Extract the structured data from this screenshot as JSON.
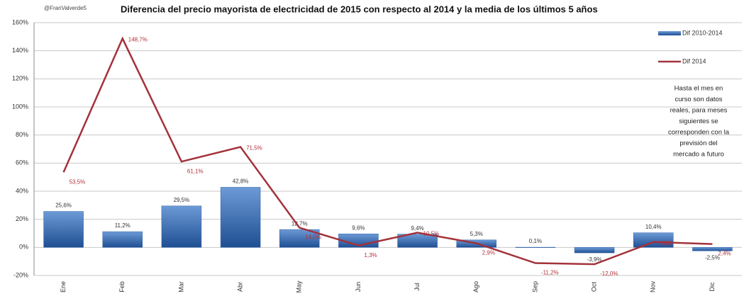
{
  "chart_data": {
    "type": "bar_line",
    "title": "Diferencia del precio mayorista de electricidad de 2015 con respecto al 2014 y la media de los últimos 5 años",
    "source": "@FranValverde5",
    "categories": [
      "Ene",
      "Feb",
      "Mar",
      "Abr",
      "May",
      "Jun",
      "Jul",
      "Ago",
      "Sep",
      "Oct",
      "Nov",
      "Dic"
    ],
    "series": [
      {
        "name": "Dif 2010-2014",
        "type": "bar",
        "color": "#2f62a8",
        "values": [
          25.6,
          11.2,
          29.5,
          42.8,
          12.7,
          9.6,
          9.4,
          5.3,
          0.1,
          -3.9,
          10.4,
          -2.5
        ],
        "value_labels": [
          "25,6%",
          "11,2%",
          "29,5%",
          "42,8%",
          "12,7%",
          "9,6%",
          "9,4%",
          "5,3%",
          "0,1%",
          "-3,9%",
          "10,4%",
          "-2,5%"
        ]
      },
      {
        "name": "Dif 2014",
        "type": "line",
        "color": "#a3323b",
        "values": [
          53.5,
          148.7,
          61.1,
          71.5,
          14.0,
          1.3,
          10.5,
          2.9,
          -11.2,
          -12.0,
          3.8,
          2.4
        ],
        "value_labels": [
          "53,5%",
          "148,7%",
          "61,1%",
          "71,5%",
          "14,0%",
          "1,3%",
          "10,5%",
          "2,9%",
          "-11,2%",
          "-12,0%",
          "3,8%",
          "2,4%"
        ]
      }
    ],
    "ylim": [
      -20,
      160
    ],
    "yticks": [
      {
        "value": -20,
        "label": "-20%"
      },
      {
        "value": 0,
        "label": "0%"
      },
      {
        "value": 20,
        "label": "20%"
      },
      {
        "value": 40,
        "label": "40%"
      },
      {
        "value": 60,
        "label": "60%"
      },
      {
        "value": 80,
        "label": "80%"
      },
      {
        "value": 100,
        "label": "100%"
      },
      {
        "value": 120,
        "label": "120%"
      },
      {
        "value": 140,
        "label": "140%"
      },
      {
        "value": 160,
        "label": "160%"
      }
    ],
    "grid": true,
    "legend": "right",
    "annotation": [
      "Hasta el mes en",
      "curso son datos",
      "reales, para meses",
      "siguientes se",
      "corresponden con la",
      "previsión del",
      "mercado a futuro"
    ]
  }
}
